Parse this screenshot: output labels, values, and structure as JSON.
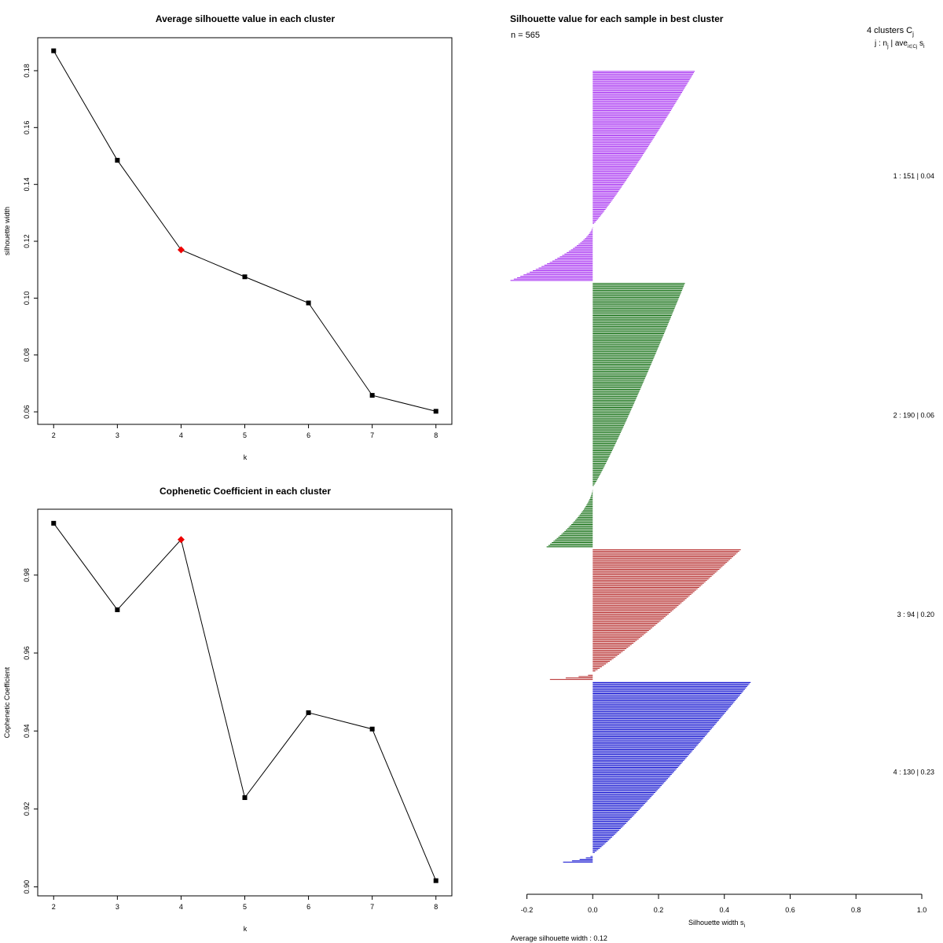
{
  "chart_data": [
    {
      "type": "line",
      "title": "Average silhouette value in each cluster",
      "xlabel": "k",
      "ylabel": "silhouette width",
      "x": [
        2,
        3,
        4,
        5,
        6,
        7,
        8
      ],
      "values": [
        0.187,
        0.1485,
        0.117,
        0.1075,
        0.0983,
        0.0658,
        0.0602
      ],
      "highlight_index": 2,
      "highlight_color": "#ee0000",
      "xticks": [
        "2",
        "3",
        "4",
        "5",
        "6",
        "7",
        "8"
      ],
      "yticks": [
        "0.06",
        "0.08",
        "0.10",
        "0.12",
        "0.14",
        "0.16",
        "0.18"
      ],
      "xlim": [
        1.75,
        8.25
      ],
      "ylim": [
        0.0556,
        0.1916
      ]
    },
    {
      "type": "line",
      "title": "Cophenetic Coefficient in each cluster",
      "xlabel": "k",
      "ylabel": "Cophenetic Coefficient",
      "x": [
        2,
        3,
        4,
        5,
        6,
        7,
        8
      ],
      "values": [
        0.9933,
        0.9711,
        0.9891,
        0.9229,
        0.9447,
        0.9405,
        0.9016
      ],
      "highlight_index": 2,
      "highlight_color": "#ee0000",
      "xticks": [
        "2",
        "3",
        "4",
        "5",
        "6",
        "7",
        "8"
      ],
      "yticks": [
        "0.90",
        "0.92",
        "0.94",
        "0.96",
        "0.98"
      ],
      "xlim": [
        1.75,
        8.25
      ],
      "ylim": [
        0.8977,
        0.9969
      ]
    },
    {
      "type": "bar",
      "orientation": "horizontal",
      "title": "Silhouette value for each sample in best cluster",
      "n_label": "n = 565",
      "xlabel": "Silhouette width s",
      "xlabel_sub": "i",
      "xticks": [
        "-0.2",
        "0.0",
        "0.2",
        "0.4",
        "0.6",
        "0.8",
        "1.0"
      ],
      "xlim": [
        -0.24,
        1.04
      ],
      "legend_header": "4 clusters  C",
      "legend_header_sub": "j",
      "legend_subheader": "j :  n",
      "legend_subheader_sub": "j",
      "legend_subheader_rest": " | ave",
      "legend_subheader_sub2": "i∈Cj",
      "legend_subheader_end": " s",
      "legend_subheader_sub3": "i",
      "footer": "Average silhouette width :  0.12",
      "series": [
        {
          "name": "1",
          "label": "1 :   151  |  0.04",
          "n": 151,
          "max": 0.31,
          "min": -0.25,
          "neg_count": 40,
          "color": "#a020f0"
        },
        {
          "name": "2",
          "label": "2 :   190  |  0.06",
          "n": 190,
          "max": 0.28,
          "min": -0.14,
          "neg_count": 43,
          "color": "#006400"
        },
        {
          "name": "3",
          "label": "3 :   94  |  0.20",
          "n": 94,
          "max": 0.45,
          "min": -0.13,
          "neg_count": 5,
          "color": "#b22222"
        },
        {
          "name": "4",
          "label": "4 :   130  |  0.23",
          "n": 130,
          "max": 0.48,
          "min": -0.09,
          "neg_count": 6,
          "color": "#0000cd"
        }
      ]
    }
  ]
}
